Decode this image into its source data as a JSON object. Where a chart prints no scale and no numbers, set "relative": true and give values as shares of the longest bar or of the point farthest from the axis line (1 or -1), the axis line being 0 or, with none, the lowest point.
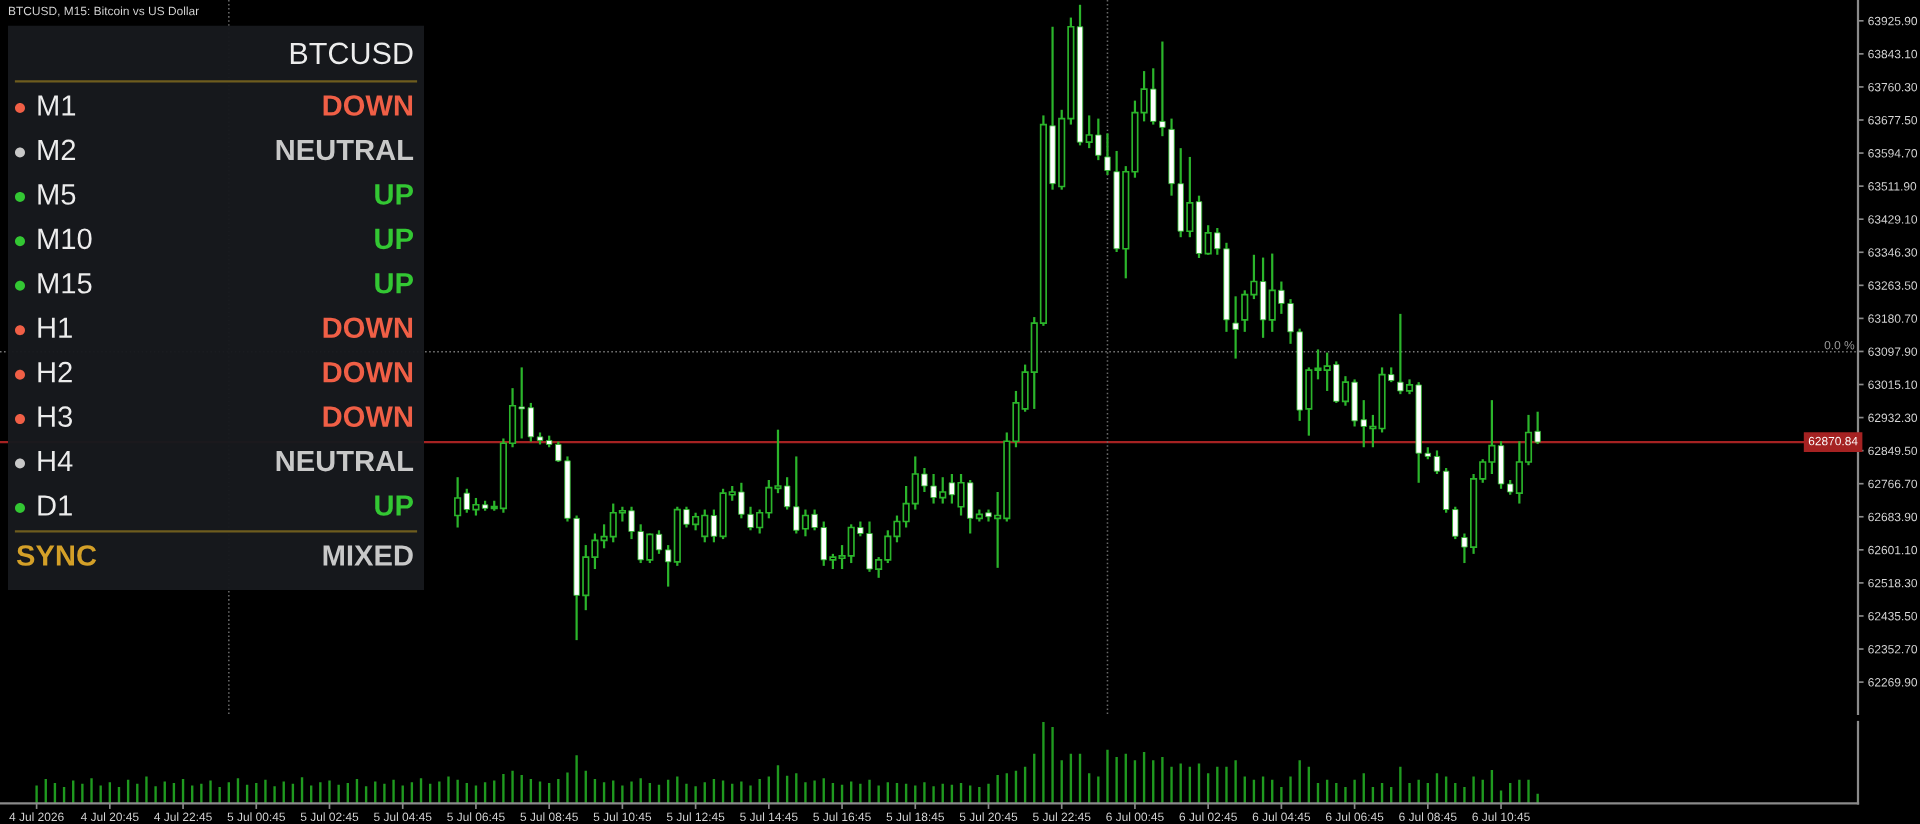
{
  "chart_data": [
    {
      "type": "candlestick",
      "title": "BTCUSD, M15: Bitcoin vs US Dollar",
      "tick_labels": "y",
      "x": [
        "2026-07-05T06:15",
        "2026-07-05T06:30",
        "2026-07-05T06:45",
        "2026-07-05T07:00",
        "2026-07-05T07:15",
        "2026-07-05T07:30",
        "2026-07-05T07:45",
        "2026-07-05T08:00",
        "2026-07-05T08:15",
        "2026-07-05T08:30",
        "2026-07-05T08:45",
        "2026-07-05T09:00",
        "2026-07-05T09:15",
        "2026-07-05T09:30",
        "2026-07-05T09:45",
        "2026-07-05T10:00",
        "2026-07-05T10:15",
        "2026-07-05T10:30",
        "2026-07-05T10:45",
        "2026-07-05T11:00",
        "2026-07-05T11:15",
        "2026-07-05T11:30",
        "2026-07-05T11:45",
        "2026-07-05T12:00",
        "2026-07-05T12:15",
        "2026-07-05T12:30",
        "2026-07-05T12:45",
        "2026-07-05T13:00",
        "2026-07-05T13:15",
        "2026-07-05T13:30",
        "2026-07-05T13:45",
        "2026-07-05T14:00",
        "2026-07-05T14:15",
        "2026-07-05T14:30",
        "2026-07-05T14:45",
        "2026-07-05T15:00",
        "2026-07-05T15:15",
        "2026-07-05T15:30",
        "2026-07-05T15:45",
        "2026-07-05T16:00",
        "2026-07-05T16:15",
        "2026-07-05T16:30",
        "2026-07-05T16:45",
        "2026-07-05T17:00",
        "2026-07-05T17:15",
        "2026-07-05T17:30",
        "2026-07-05T17:45",
        "2026-07-05T18:00",
        "2026-07-05T18:15",
        "2026-07-05T18:30",
        "2026-07-05T18:45",
        "2026-07-05T19:00",
        "2026-07-05T19:15",
        "2026-07-05T19:30",
        "2026-07-05T19:45",
        "2026-07-05T20:00",
        "2026-07-05T20:15",
        "2026-07-05T20:30",
        "2026-07-05T20:45",
        "2026-07-05T21:00",
        "2026-07-05T21:15",
        "2026-07-05T21:30",
        "2026-07-05T21:45",
        "2026-07-05T22:00",
        "2026-07-05T22:15",
        "2026-07-05T22:30",
        "2026-07-05T22:45",
        "2026-07-05T23:00",
        "2026-07-05T23:15",
        "2026-07-05T23:30",
        "2026-07-05T23:45",
        "2026-07-06T00:00",
        "2026-07-06T00:15",
        "2026-07-06T00:30",
        "2026-07-06T00:45",
        "2026-07-06T01:00",
        "2026-07-06T01:15",
        "2026-07-06T01:30",
        "2026-07-06T01:45",
        "2026-07-06T02:00",
        "2026-07-06T02:15",
        "2026-07-06T02:30",
        "2026-07-06T02:45",
        "2026-07-06T03:00",
        "2026-07-06T03:15",
        "2026-07-06T03:30",
        "2026-07-06T03:45",
        "2026-07-06T04:00",
        "2026-07-06T04:15",
        "2026-07-06T04:30",
        "2026-07-06T04:45",
        "2026-07-06T05:00",
        "2026-07-06T05:15",
        "2026-07-06T05:30",
        "2026-07-06T05:45",
        "2026-07-06T06:00",
        "2026-07-06T06:15",
        "2026-07-06T06:30",
        "2026-07-06T06:45",
        "2026-07-06T07:00",
        "2026-07-06T07:15",
        "2026-07-06T07:30",
        "2026-07-06T07:45",
        "2026-07-06T08:00",
        "2026-07-06T08:15",
        "2026-07-06T08:30",
        "2026-07-06T08:45",
        "2026-07-06T09:00",
        "2026-07-06T09:15",
        "2026-07-06T09:30",
        "2026-07-06T09:45",
        "2026-07-06T10:00",
        "2026-07-06T10:15",
        "2026-07-06T10:30",
        "2026-07-06T10:45",
        "2026-07-06T11:00",
        "2026-07-06T11:15",
        "2026-07-06T11:30",
        "2026-07-06T11:45"
      ],
      "ohlc": [
        [
          62687,
          62783,
          62657,
          62731
        ],
        [
          62743,
          62754,
          62694,
          62702
        ],
        [
          62702,
          62731,
          62687,
          62714
        ],
        [
          62714,
          62724,
          62699,
          62705
        ],
        [
          62705,
          62724,
          62699,
          62709
        ],
        [
          62705,
          62880,
          62694,
          62868
        ],
        [
          62868,
          63006,
          62858,
          62962
        ],
        [
          62959,
          63058,
          62880,
          62954
        ],
        [
          62957,
          62969,
          62872,
          62884
        ],
        [
          62884,
          62895,
          62865,
          62875
        ],
        [
          62875,
          62887,
          62858,
          62865
        ],
        [
          62865,
          62872,
          62821,
          62824
        ],
        [
          62824,
          62835,
          62672,
          62680
        ],
        [
          62680,
          62687,
          62375,
          62487
        ],
        [
          62487,
          62613,
          62450,
          62583
        ],
        [
          62583,
          62642,
          62553,
          62625
        ],
        [
          62625,
          62665,
          62605,
          62634
        ],
        [
          62634,
          62717,
          62620,
          62694
        ],
        [
          62694,
          62709,
          62672,
          62699
        ],
        [
          62699,
          62709,
          62628,
          62647
        ],
        [
          62647,
          62665,
          62568,
          62576
        ],
        [
          62576,
          62642,
          62568,
          62640
        ],
        [
          62640,
          62650,
          62591,
          62601
        ],
        [
          62601,
          62613,
          62509,
          62571
        ],
        [
          62571,
          62709,
          62561,
          62702
        ],
        [
          62702,
          62709,
          62657,
          62665
        ],
        [
          62665,
          62694,
          62650,
          62684
        ],
        [
          62635,
          62702,
          62620,
          62687
        ],
        [
          62687,
          62702,
          62620,
          62635
        ],
        [
          62635,
          62754,
          62628,
          62743
        ],
        [
          62739,
          62761,
          62724,
          62746
        ],
        [
          62746,
          62769,
          62680,
          62690
        ],
        [
          62690,
          62709,
          62650,
          62657
        ],
        [
          62657,
          62702,
          62642,
          62694
        ],
        [
          62694,
          62776,
          62680,
          62757
        ],
        [
          62755,
          62902,
          62743,
          62761
        ],
        [
          62761,
          62783,
          62702,
          62709
        ],
        [
          62709,
          62835,
          62642,
          62650
        ],
        [
          62654,
          62702,
          62635,
          62687
        ],
        [
          62690,
          62702,
          62650,
          62657
        ],
        [
          62657,
          62672,
          62561,
          62576
        ],
        [
          62576,
          62591,
          62553,
          62583
        ],
        [
          62580,
          62613,
          62553,
          62586
        ],
        [
          62586,
          62665,
          62568,
          62657
        ],
        [
          62657,
          62672,
          62635,
          62642
        ],
        [
          62642,
          62672,
          62546,
          62553
        ],
        [
          62553,
          62583,
          62531,
          62576
        ],
        [
          62576,
          62650,
          62568,
          62635
        ],
        [
          62635,
          62687,
          62620,
          62672
        ],
        [
          62672,
          62761,
          62657,
          62717
        ],
        [
          62717,
          62835,
          62702,
          62791
        ],
        [
          62791,
          62806,
          62746,
          62761
        ],
        [
          62761,
          62791,
          62717,
          62732
        ],
        [
          62732,
          62783,
          62717,
          62746
        ],
        [
          62769,
          62791,
          62717,
          62739
        ],
        [
          62709,
          62791,
          62687,
          62769
        ],
        [
          62769,
          62776,
          62642,
          62680
        ],
        [
          62680,
          62702,
          62672,
          62690
        ],
        [
          62694,
          62702,
          62672,
          62684
        ],
        [
          62680,
          62746,
          62556,
          62687
        ],
        [
          62680,
          62895,
          62672,
          62873
        ],
        [
          62873,
          62999,
          62858,
          62969
        ],
        [
          62954,
          63065,
          62947,
          63046
        ],
        [
          63046,
          63184,
          62954,
          63169
        ],
        [
          63169,
          63689,
          63162,
          63666
        ],
        [
          63663,
          63911,
          63503,
          63518
        ],
        [
          63511,
          63703,
          63503,
          63681
        ],
        [
          63681,
          63934,
          63666,
          63911
        ],
        [
          63911,
          63966,
          63614,
          63622
        ],
        [
          63622,
          63689,
          63607,
          63640
        ],
        [
          63640,
          63681,
          63577,
          63589
        ],
        [
          63585,
          63644,
          63540,
          63551
        ],
        [
          63548,
          63600,
          63347,
          63355
        ],
        [
          63355,
          63562,
          63281,
          63548
        ],
        [
          63548,
          63726,
          63533,
          63696
        ],
        [
          63696,
          63800,
          63674,
          63755
        ],
        [
          63755,
          63807,
          63666,
          63674
        ],
        [
          63674,
          63874,
          63637,
          63659
        ],
        [
          63654,
          63681,
          63488,
          63518
        ],
        [
          63518,
          63607,
          63384,
          63399
        ],
        [
          63399,
          63585,
          63384,
          63470
        ],
        [
          63473,
          63488,
          63332,
          63343
        ],
        [
          63343,
          63414,
          63340,
          63395
        ],
        [
          63395,
          63407,
          63340,
          63355
        ],
        [
          63355,
          63370,
          63147,
          63177
        ],
        [
          63169,
          63236,
          63080,
          63153
        ],
        [
          63177,
          63251,
          63147,
          63240
        ],
        [
          63240,
          63340,
          63229,
          63273
        ],
        [
          63273,
          63333,
          63132,
          63177
        ],
        [
          63177,
          63343,
          63147,
          63251
        ],
        [
          63251,
          63273,
          63192,
          63218
        ],
        [
          63218,
          63229,
          63117,
          63147
        ],
        [
          63147,
          63155,
          62924,
          62951
        ],
        [
          62954,
          63058,
          62887,
          63051
        ],
        [
          63051,
          63103,
          63028,
          63054
        ],
        [
          63051,
          63095,
          62999,
          63061
        ],
        [
          63065,
          63073,
          62969,
          62973
        ],
        [
          62973,
          63036,
          62962,
          63021
        ],
        [
          63021,
          63028,
          62910,
          62924
        ],
        [
          62927,
          62976,
          62858,
          62910
        ],
        [
          62905,
          62939,
          62858,
          62910
        ],
        [
          62905,
          63058,
          62895,
          63040
        ],
        [
          63040,
          63058,
          63021,
          63025
        ],
        [
          63021,
          63192,
          62991,
          62999
        ],
        [
          62999,
          63028,
          62991,
          63014
        ],
        [
          63014,
          63021,
          62769,
          62843
        ],
        [
          62843,
          62858,
          62828,
          62835
        ],
        [
          62835,
          62850,
          62791,
          62798
        ],
        [
          62798,
          62806,
          62694,
          62702
        ],
        [
          62702,
          62709,
          62628,
          62635
        ],
        [
          62632,
          62642,
          62568,
          62608
        ],
        [
          62608,
          62791,
          62591,
          62779
        ],
        [
          62779,
          62828,
          62769,
          62821
        ],
        [
          62821,
          62976,
          62791,
          62862
        ],
        [
          62862,
          62873,
          62754,
          62766
        ],
        [
          62766,
          62776,
          62739,
          62746
        ],
        [
          62743,
          62873,
          62717,
          62821
        ],
        [
          62821,
          62939,
          62813,
          62895
        ],
        [
          62898,
          62947,
          62866,
          62870.84
        ]
      ],
      "color": "#2bb52b",
      "colors": [
        "#2bb52b",
        "#ffffff",
        "#2bb52b",
        "#ffffff",
        "#2bb52b",
        "#2bb52b",
        "#2bb52b",
        "#ffffff",
        "#ffffff",
        "#ffffff",
        "#ffffff",
        "#ffffff",
        "#ffffff",
        "#ffffff",
        "#2bb52b",
        "#2bb52b",
        "#2bb52b",
        "#2bb52b",
        "#2bb52b",
        "#ffffff",
        "#ffffff",
        "#2bb52b",
        "#ffffff",
        "#ffffff",
        "#2bb52b",
        "#ffffff",
        "#2bb52b",
        "#2bb52b",
        "#ffffff",
        "#2bb52b",
        "#2bb52b",
        "#ffffff",
        "#ffffff",
        "#2bb52b",
        "#2bb52b",
        "#2bb52b",
        "#ffffff",
        "#ffffff",
        "#2bb52b",
        "#ffffff",
        "#ffffff",
        "#2bb52b",
        "#2bb52b",
        "#2bb52b",
        "#ffffff",
        "#ffffff",
        "#2bb52b",
        "#2bb52b",
        "#2bb52b",
        "#2bb52b",
        "#2bb52b",
        "#ffffff",
        "#ffffff",
        "#2bb52b",
        "#ffffff",
        "#2bb52b",
        "#ffffff",
        "#2bb52b",
        "#ffffff",
        "#2bb52b",
        "#2bb52b",
        "#2bb52b",
        "#2bb52b",
        "#2bb52b",
        "#2bb52b",
        "#ffffff",
        "#2bb52b",
        "#2bb52b",
        "#ffffff",
        "#2bb52b",
        "#ffffff",
        "#ffffff",
        "#ffffff",
        "#2bb52b",
        "#2bb52b",
        "#2bb52b",
        "#ffffff",
        "#ffffff",
        "#ffffff",
        "#ffffff",
        "#2bb52b",
        "#ffffff",
        "#2bb52b",
        "#ffffff",
        "#ffffff",
        "#ffffff",
        "#2bb52b",
        "#2bb52b",
        "#ffffff",
        "#2bb52b",
        "#ffffff",
        "#ffffff",
        "#ffffff",
        "#2bb52b",
        "#2bb52b",
        "#2bb52b",
        "#ffffff",
        "#2bb52b",
        "#ffffff",
        "#ffffff",
        "#2bb52b",
        "#2bb52b",
        "#ffffff",
        "#ffffff",
        "#2bb52b",
        "#ffffff",
        "#ffffff",
        "#ffffff",
        "#ffffff",
        "#ffffff",
        "#ffffff",
        "#2bb52b",
        "#2bb52b",
        "#2bb52b",
        "#ffffff",
        "#ffffff",
        "#2bb52b",
        "#2bb52b",
        "#ffffff"
      ],
      "xlim": [
        "2026-07-04T17:45",
        "2026-07-06T20:30"
      ],
      "ylim": [
        62190,
        63978
      ],
      "yticks": [
        {
          "value": 63925.9,
          "label": "63925.90"
        },
        {
          "value": 63843.1,
          "label": "63843.10"
        },
        {
          "value": 63760.3,
          "label": "63760.30"
        },
        {
          "value": 63677.5,
          "label": "63677.50"
        },
        {
          "value": 63594.7,
          "label": "63594.70"
        },
        {
          "value": 63511.9,
          "label": "63511.90"
        },
        {
          "value": 63429.1,
          "label": "63429.10"
        },
        {
          "value": 63346.3,
          "label": "63346.30"
        },
        {
          "value": 63263.5,
          "label": "63263.50"
        },
        {
          "value": 63180.7,
          "label": "63180.70"
        },
        {
          "value": 63097.9,
          "label": "63097.90"
        },
        {
          "value": 63015.1,
          "label": "63015.10"
        },
        {
          "value": 62932.3,
          "label": "62932.30"
        },
        {
          "value": 62849.5,
          "label": "62849.50"
        },
        {
          "value": 62766.7,
          "label": "62766.70"
        },
        {
          "value": 62683.9,
          "label": "62683.90"
        },
        {
          "value": 62601.1,
          "label": "62601.10"
        },
        {
          "value": 62518.3,
          "label": "62518.30"
        },
        {
          "value": 62435.5,
          "label": "62435.50"
        },
        {
          "value": 62352.7,
          "label": "62352.70"
        },
        {
          "value": 62269.9,
          "label": "62269.90"
        }
      ],
      "ref_lines": [
        {
          "axis": "y",
          "value": 62870.84,
          "label": "62870.84",
          "color": "#a52222",
          "line_style": "solid"
        },
        {
          "axis": "y",
          "value": 63097,
          "color": "#7a7a7a",
          "line_style": "dotted"
        },
        {
          "axis": "x",
          "value": "2026-07-05T00:00",
          "color": "#6a6a6a",
          "line_style": "dotted"
        },
        {
          "axis": "x",
          "value": "2026-07-06T00:00",
          "color": "#6a6a6a",
          "line_style": "dotted"
        }
      ],
      "annotations": [
        {
          "text": "0.0 %",
          "x": "2026-07-06T20:30",
          "y": 63097
        }
      ]
    },
    {
      "type": "bar",
      "relative": true,
      "color": "#1f9a1f",
      "xlim": [
        "2026-07-04T17:45",
        "2026-07-06T20:30"
      ],
      "xticks": [
        {
          "value": "2026-07-04T18:45",
          "label": "4 Jul 2026"
        },
        {
          "value": "2026-07-04T20:45",
          "label": "4 Jul 20:45"
        },
        {
          "value": "2026-07-04T22:45",
          "label": "4 Jul 22:45"
        },
        {
          "value": "2026-07-05T00:45",
          "label": "5 Jul 00:45"
        },
        {
          "value": "2026-07-05T02:45",
          "label": "5 Jul 02:45"
        },
        {
          "value": "2026-07-05T04:45",
          "label": "5 Jul 04:45"
        },
        {
          "value": "2026-07-05T06:45",
          "label": "5 Jul 06:45"
        },
        {
          "value": "2026-07-05T08:45",
          "label": "5 Jul 08:45"
        },
        {
          "value": "2026-07-05T10:45",
          "label": "5 Jul 10:45"
        },
        {
          "value": "2026-07-05T12:45",
          "label": "5 Jul 12:45"
        },
        {
          "value": "2026-07-05T14:45",
          "label": "5 Jul 14:45"
        },
        {
          "value": "2026-07-05T16:45",
          "label": "5 Jul 16:45"
        },
        {
          "value": "2026-07-05T18:45",
          "label": "5 Jul 18:45"
        },
        {
          "value": "2026-07-05T20:45",
          "label": "5 Jul 20:45"
        },
        {
          "value": "2026-07-05T22:45",
          "label": "5 Jul 22:45"
        },
        {
          "value": "2026-07-06T00:45",
          "label": "6 Jul 00:45"
        },
        {
          "value": "2026-07-06T02:45",
          "label": "6 Jul 02:45"
        },
        {
          "value": "2026-07-06T04:45",
          "label": "6 Jul 04:45"
        },
        {
          "value": "2026-07-06T06:45",
          "label": "6 Jul 06:45"
        },
        {
          "value": "2026-07-06T08:45",
          "label": "6 Jul 08:45"
        },
        {
          "value": "2026-07-06T10:45",
          "label": "6 Jul 10:45"
        }
      ],
      "x": [
        "2026-07-04T18:45",
        "2026-07-04T19:00",
        "2026-07-04T19:15",
        "2026-07-04T19:30",
        "2026-07-04T19:45",
        "2026-07-04T20:00",
        "2026-07-04T20:15",
        "2026-07-04T20:30",
        "2026-07-04T20:45",
        "2026-07-04T21:00",
        "2026-07-04T21:15",
        "2026-07-04T21:30",
        "2026-07-04T21:45",
        "2026-07-04T22:00",
        "2026-07-04T22:15",
        "2026-07-04T22:30",
        "2026-07-04T22:45",
        "2026-07-04T23:00",
        "2026-07-04T23:15",
        "2026-07-04T23:30",
        "2026-07-04T23:45",
        "2026-07-05T00:00",
        "2026-07-05T00:15",
        "2026-07-05T00:30",
        "2026-07-05T00:45",
        "2026-07-05T01:00",
        "2026-07-05T01:15",
        "2026-07-05T01:30",
        "2026-07-05T01:45",
        "2026-07-05T02:00",
        "2026-07-05T02:15",
        "2026-07-05T02:30",
        "2026-07-05T02:45",
        "2026-07-05T03:00",
        "2026-07-05T03:15",
        "2026-07-05T03:30",
        "2026-07-05T03:45",
        "2026-07-05T04:00",
        "2026-07-05T04:15",
        "2026-07-05T04:30",
        "2026-07-05T04:45",
        "2026-07-05T05:00",
        "2026-07-05T05:15",
        "2026-07-05T05:30",
        "2026-07-05T05:45",
        "2026-07-05T06:00",
        "2026-07-05T06:15",
        "2026-07-05T06:30",
        "2026-07-05T06:45",
        "2026-07-05T07:00",
        "2026-07-05T07:15",
        "2026-07-05T07:30",
        "2026-07-05T07:45",
        "2026-07-05T08:00",
        "2026-07-05T08:15",
        "2026-07-05T08:30",
        "2026-07-05T08:45",
        "2026-07-05T09:00",
        "2026-07-05T09:15",
        "2026-07-05T09:30",
        "2026-07-05T09:45",
        "2026-07-05T10:00",
        "2026-07-05T10:15",
        "2026-07-05T10:30",
        "2026-07-05T10:45",
        "2026-07-05T11:00",
        "2026-07-05T11:15",
        "2026-07-05T11:30",
        "2026-07-05T11:45",
        "2026-07-05T12:00",
        "2026-07-05T12:15",
        "2026-07-05T12:30",
        "2026-07-05T12:45",
        "2026-07-05T13:00",
        "2026-07-05T13:15",
        "2026-07-05T13:30",
        "2026-07-05T13:45",
        "2026-07-05T14:00",
        "2026-07-05T14:15",
        "2026-07-05T14:30",
        "2026-07-05T14:45",
        "2026-07-05T15:00",
        "2026-07-05T15:15",
        "2026-07-05T15:30",
        "2026-07-05T15:45",
        "2026-07-05T16:00",
        "2026-07-05T16:15",
        "2026-07-05T16:30",
        "2026-07-05T16:45",
        "2026-07-05T17:00",
        "2026-07-05T17:15",
        "2026-07-05T17:30",
        "2026-07-05T17:45",
        "2026-07-05T18:00",
        "2026-07-05T18:15",
        "2026-07-05T18:30",
        "2026-07-05T18:45",
        "2026-07-05T19:00",
        "2026-07-05T19:15",
        "2026-07-05T19:30",
        "2026-07-05T19:45",
        "2026-07-05T20:00",
        "2026-07-05T20:15",
        "2026-07-05T20:30",
        "2026-07-05T20:45",
        "2026-07-05T21:00",
        "2026-07-05T21:15",
        "2026-07-05T21:30",
        "2026-07-05T21:45",
        "2026-07-05T22:00",
        "2026-07-05T22:15",
        "2026-07-05T22:30",
        "2026-07-05T22:45",
        "2026-07-05T23:00",
        "2026-07-05T23:15",
        "2026-07-05T23:30",
        "2026-07-05T23:45",
        "2026-07-06T00:00",
        "2026-07-06T00:15",
        "2026-07-06T00:30",
        "2026-07-06T00:45",
        "2026-07-06T01:00",
        "2026-07-06T01:15",
        "2026-07-06T01:30",
        "2026-07-06T01:45",
        "2026-07-06T02:00",
        "2026-07-06T02:15",
        "2026-07-06T02:30",
        "2026-07-06T02:45",
        "2026-07-06T03:00",
        "2026-07-06T03:15",
        "2026-07-06T03:30",
        "2026-07-06T03:45",
        "2026-07-06T04:00",
        "2026-07-06T04:15",
        "2026-07-06T04:30",
        "2026-07-06T04:45",
        "2026-07-06T05:00",
        "2026-07-06T05:15",
        "2026-07-06T05:30",
        "2026-07-06T05:45",
        "2026-07-06T06:00",
        "2026-07-06T06:15",
        "2026-07-06T06:30",
        "2026-07-06T06:45",
        "2026-07-06T07:00",
        "2026-07-06T07:15",
        "2026-07-06T07:30",
        "2026-07-06T07:45",
        "2026-07-06T08:00",
        "2026-07-06T08:15",
        "2026-07-06T08:30",
        "2026-07-06T08:45",
        "2026-07-06T09:00",
        "2026-07-06T09:15",
        "2026-07-06T09:30",
        "2026-07-06T09:45",
        "2026-07-06T10:00",
        "2026-07-06T10:15",
        "2026-07-06T10:30",
        "2026-07-06T10:45",
        "2026-07-06T11:00",
        "2026-07-06T11:15",
        "2026-07-06T11:30",
        "2026-07-06T11:45"
      ],
      "values": [
        0.22,
        0.3,
        0.25,
        0.2,
        0.28,
        0.24,
        0.31,
        0.22,
        0.26,
        0.2,
        0.29,
        0.24,
        0.33,
        0.21,
        0.27,
        0.25,
        0.3,
        0.22,
        0.24,
        0.28,
        0.2,
        0.26,
        0.31,
        0.23,
        0.25,
        0.29,
        0.21,
        0.27,
        0.24,
        0.32,
        0.22,
        0.26,
        0.28,
        0.23,
        0.25,
        0.3,
        0.21,
        0.27,
        0.24,
        0.29,
        0.22,
        0.26,
        0.31,
        0.24,
        0.27,
        0.33,
        0.29,
        0.25,
        0.22,
        0.26,
        0.28,
        0.36,
        0.4,
        0.35,
        0.3,
        0.27,
        0.25,
        0.3,
        0.38,
        0.59,
        0.4,
        0.3,
        0.26,
        0.28,
        0.22,
        0.27,
        0.31,
        0.25,
        0.23,
        0.29,
        0.33,
        0.24,
        0.21,
        0.26,
        0.3,
        0.28,
        0.24,
        0.27,
        0.22,
        0.3,
        0.33,
        0.47,
        0.34,
        0.37,
        0.26,
        0.28,
        0.31,
        0.25,
        0.23,
        0.27,
        0.24,
        0.29,
        0.22,
        0.26,
        0.25,
        0.24,
        0.22,
        0.26,
        0.21,
        0.24,
        0.23,
        0.25,
        0.22,
        0.2,
        0.24,
        0.35,
        0.37,
        0.4,
        0.45,
        0.61,
        1,
        0.94,
        0.53,
        0.61,
        0.61,
        0.37,
        0.33,
        0.66,
        0.57,
        0.61,
        0.53,
        0.63,
        0.53,
        0.57,
        0.45,
        0.49,
        0.45,
        0.49,
        0.37,
        0.45,
        0.45,
        0.53,
        0.33,
        0.29,
        0.33,
        0.29,
        0.2,
        0.33,
        0.53,
        0.45,
        0.25,
        0.29,
        0.25,
        0.2,
        0.29,
        0.37,
        0.2,
        0.25,
        0.2,
        0.45,
        0.25,
        0.29,
        0.25,
        0.37,
        0.33,
        0.25,
        0.2,
        0.33,
        0.29,
        0.41,
        0.16,
        0.25,
        0.29,
        0.29,
        0.12
      ]
    },
    {
      "type": "other",
      "title": "BTCUSD",
      "categories": [
        "M1",
        "M2",
        "M5",
        "M10",
        "M15",
        "H1",
        "H2",
        "H3",
        "H4",
        "D1"
      ],
      "colors": [
        "#f05f46",
        "#c8c8c8",
        "#33c733",
        "#33c733",
        "#33c733",
        "#f05f46",
        "#f05f46",
        "#f05f46",
        "#c8c8c8",
        "#33c733"
      ],
      "annotations": [
        "DOWN",
        "NEUTRAL",
        "UP",
        "UP",
        "UP",
        "DOWN",
        "DOWN",
        "DOWN",
        "NEUTRAL",
        "UP",
        "SYNC",
        "MIXED"
      ]
    }
  ]
}
